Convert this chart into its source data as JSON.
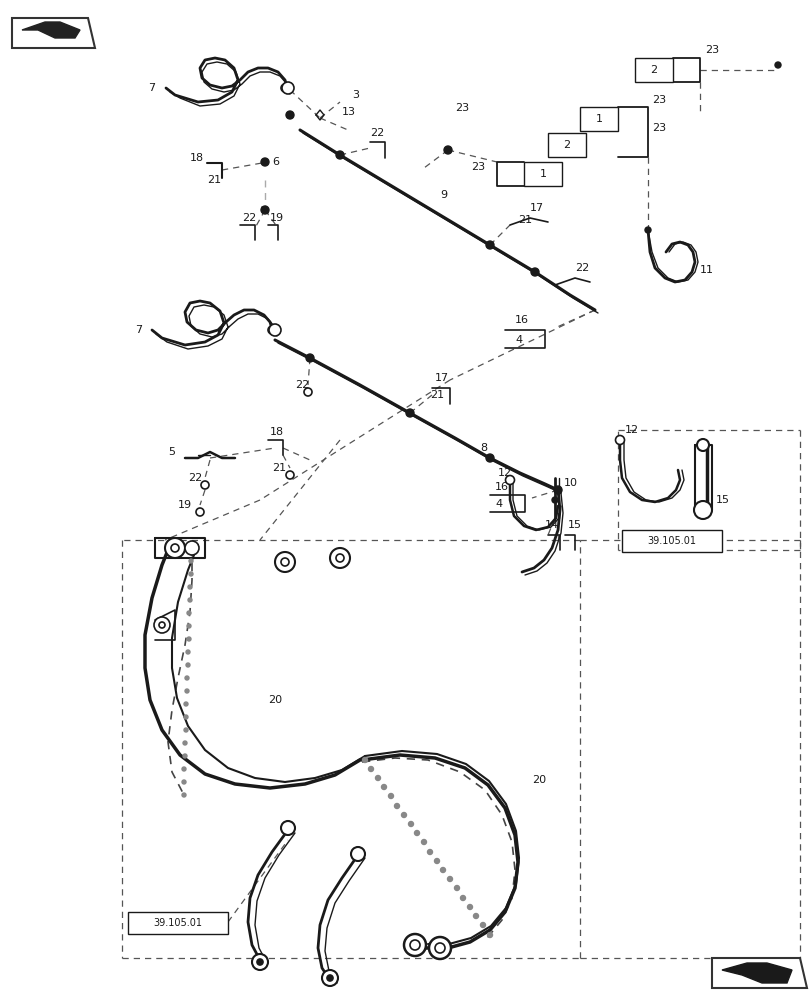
{
  "bg_color": "#ffffff",
  "line_color": "#1a1a1a",
  "fig_width": 8.12,
  "fig_height": 10.0
}
